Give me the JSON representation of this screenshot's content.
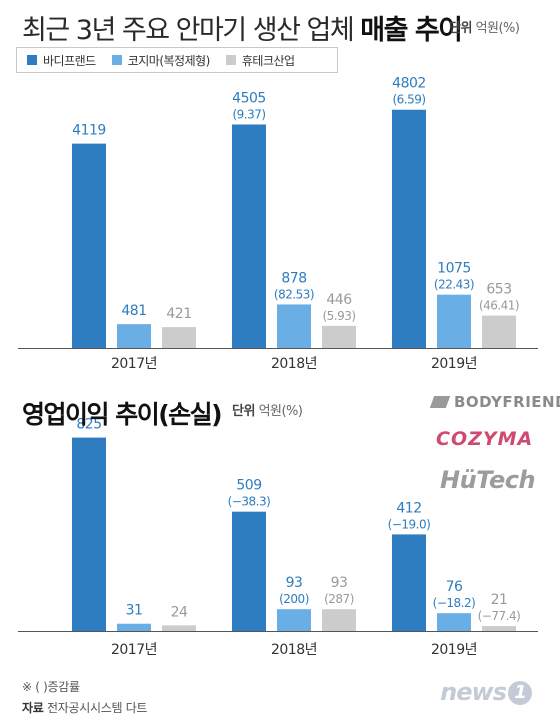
{
  "header": {
    "title_light": "최근 3년 주요 안마기 생산 업체 ",
    "title_bold": "매출 추이",
    "unit_label": "단위",
    "unit_value": "억원(%)"
  },
  "legend": [
    {
      "name": "바디프랜드",
      "color": "#2e7dc0"
    },
    {
      "name": "코지마(복정제형)",
      "color": "#6aaee6"
    },
    {
      "name": "휴테크산업",
      "color": "#cccccc"
    }
  ],
  "section2": {
    "title": "영업이익 추이(손실)",
    "unit_label": "단위",
    "unit_value": "억원(%)"
  },
  "logos": {
    "bodyfriend": "BODYFRIEND",
    "cozyma": "COZYMA",
    "hutech": "HüTech"
  },
  "footer": {
    "note": "※ ( )증감률",
    "source_label": "자료",
    "source_text": "전자공시시스템 다트",
    "brand": "news",
    "brand_num": "1"
  },
  "colors": {
    "bodyfriend": "#2e7dc0",
    "cozyma": "#6aaee6",
    "hutech": "#cccccc",
    "value_text_blue": "#2e7dc0",
    "value_text_gray": "#9a9a9a"
  },
  "chart_data": [
    {
      "type": "bar",
      "title": "최근 3년 주요 안마기 생산 업체 매출 추이",
      "categories": [
        "2017년",
        "2018년",
        "2019년"
      ],
      "series": [
        {
          "name": "바디프랜드",
          "values": [
            4119,
            4505,
            4802
          ],
          "labels": [
            "4119",
            "4505",
            "4802"
          ],
          "growth": [
            "",
            "(9.37)",
            "(6.59)"
          ]
        },
        {
          "name": "코지마(복정제형)",
          "values": [
            481,
            878,
            1075
          ],
          "labels": [
            "481",
            "878",
            "1075"
          ],
          "growth": [
            "",
            "(82.53)",
            "(22.43)"
          ]
        },
        {
          "name": "휴테크산업",
          "values": [
            421,
            446,
            653
          ],
          "labels": [
            "421",
            "446",
            "653"
          ],
          "growth": [
            "",
            "(5.93)",
            "(46.41)"
          ]
        }
      ],
      "ylim": [
        0,
        5200
      ],
      "grid": false
    },
    {
      "type": "bar",
      "title": "영업이익 추이(손실)",
      "categories": [
        "2017년",
        "2018년",
        "2019년"
      ],
      "series": [
        {
          "name": "바디프랜드",
          "values": [
            825,
            509,
            412
          ],
          "labels": [
            "825",
            "509",
            "412"
          ],
          "growth": [
            "",
            "(−38.3)",
            "(−19.0)"
          ]
        },
        {
          "name": "코지마(복정제형)",
          "values": [
            31,
            93,
            76
          ],
          "labels": [
            "31",
            "93",
            "76"
          ],
          "growth": [
            "",
            "(200)",
            "(−18.2)"
          ]
        },
        {
          "name": "휴테크산업",
          "values": [
            24,
            93,
            21
          ],
          "labels": [
            "24",
            "93",
            "21"
          ],
          "growth": [
            "",
            "(287)",
            "(−77.4)"
          ]
        }
      ],
      "ylim": [
        0,
        900
      ],
      "grid": false
    }
  ]
}
